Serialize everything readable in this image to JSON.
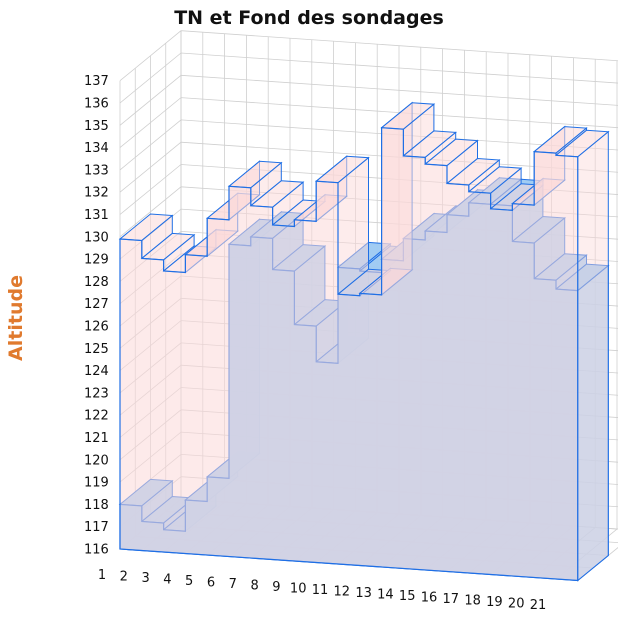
{
  "chart_data": {
    "type": "area",
    "title": "TN et Fond des sondages",
    "xlabel": "",
    "ylabel": "Altitude",
    "x": [
      1,
      2,
      3,
      4,
      5,
      6,
      7,
      8,
      9,
      10,
      11,
      12,
      13,
      14,
      15,
      16,
      17,
      18,
      19,
      20,
      21
    ],
    "x_tick_labels": [
      "1",
      "2",
      "3",
      "4",
      "5",
      "6",
      "7",
      "8",
      "9",
      "10",
      "11",
      "12",
      "13",
      "14",
      "15",
      "16",
      "17",
      "18",
      "19",
      "20",
      "21"
    ],
    "y_tick_labels": [
      "116",
      "117",
      "118",
      "119",
      "120",
      "121",
      "122",
      "123",
      "124",
      "125",
      "126",
      "127",
      "128",
      "129",
      "130",
      "131",
      "132",
      "133",
      "134",
      "135",
      "136",
      "137"
    ],
    "ylim": [
      116,
      137
    ],
    "grid": true,
    "series": [
      {
        "values": [
          118.0,
          117.3,
          117.0,
          118.4,
          119.5,
          130.0,
          130.4,
          129.0,
          126.6,
          125.0,
          129.3,
          129.2,
          129.8,
          130.8,
          131.2,
          132.0,
          132.6,
          132.6,
          131.0,
          129.4,
          129.0
        ]
      },
      {
        "values": [
          129.9,
          129.1,
          128.6,
          129.4,
          131.1,
          132.6,
          131.8,
          131.0,
          131.3,
          133.1,
          128.1,
          128.2,
          135.7,
          134.5,
          134.2,
          133.4,
          133.1,
          132.4,
          132.7,
          135.1,
          135.0
        ]
      }
    ],
    "colors": {
      "fill_blue": "#9cc9f2",
      "fill_pink": "#fbd9d9",
      "edge": "#1f6fe5",
      "grid": "#cfcfcf",
      "ylabel": "#e07a2e"
    }
  }
}
